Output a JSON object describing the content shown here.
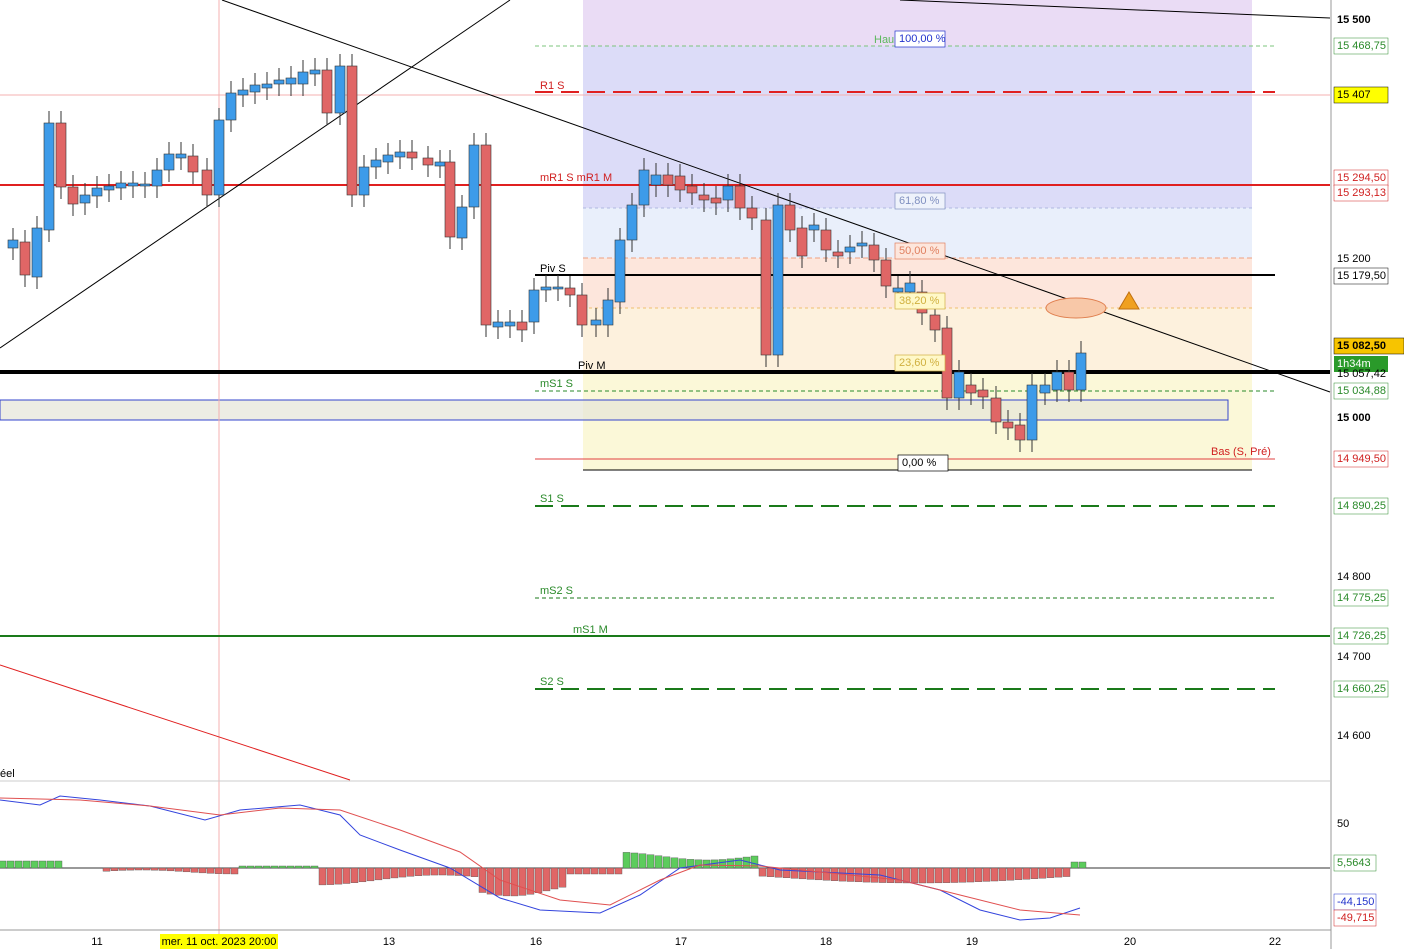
{
  "price_axis": [
    "15 500",
    "15 468,75",
    "15 407",
    "15 294,50",
    "15 293,13",
    "15 200",
    "15 179,50",
    "15 082,50",
    "1h34m",
    "15 057,42",
    "15 034,88",
    "15 000",
    "14 949,50",
    "14 890,25",
    "14 800",
    "14 775,25",
    "14 726,25",
    "14 700",
    "14 660,25",
    "14 600"
  ],
  "macd_axis": [
    "50",
    "5,5643",
    "-44,150",
    "-49,715"
  ],
  "dates": [
    "11",
    "mer. 11 oct. 2023 20:00",
    "13",
    "16",
    "17",
    "18",
    "19",
    "20",
    "22"
  ],
  "levels": [
    "Hau",
    "R1 S",
    "mR1 S mR1 M",
    "Piv S",
    "Piv M",
    "mS1 S",
    "Bas (S, Pré)",
    "S1 S",
    "mS2 S",
    "mS1 M",
    "S2 S"
  ],
  "fib": [
    "100,00 %",
    "61,80 %",
    "50,00 %",
    "38,20 %",
    "23,60 %",
    "0,00 %"
  ],
  "indicator_label": "éel"
}
